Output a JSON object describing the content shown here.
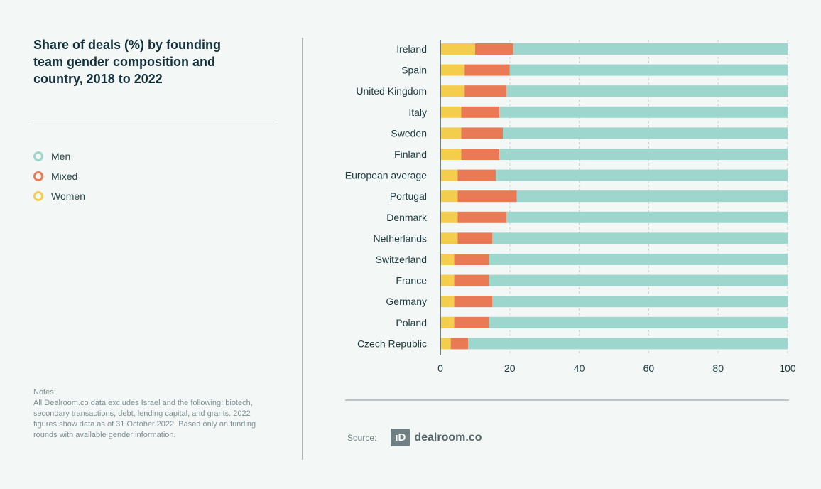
{
  "title": "Share of deals (%) by founding team gender composition and country, 2018 to 2022",
  "legend": [
    {
      "label": "Men",
      "color": "#9dd6cc"
    },
    {
      "label": "Mixed",
      "color": "#ea7a55"
    },
    {
      "label": "Women",
      "color": "#f5cd4d"
    }
  ],
  "notes": {
    "heading": "Notes:",
    "text": "All Dealroom.co data excludes Israel and the following: biotech, secondary transactions, debt, lending capital, and grants. 2022 figures show data as of 31 October 2022. Based only on funding rounds with available gender information."
  },
  "source": {
    "label": "Source:",
    "logo_mark": "ıD",
    "logo_text": "dealroom.co"
  },
  "chart_data": {
    "type": "bar",
    "orientation": "horizontal",
    "stacked": true,
    "categories": [
      "Ireland",
      "Spain",
      "United Kingdom",
      "Italy",
      "Sweden",
      "Finland",
      "European average",
      "Portugal",
      "Denmark",
      "Netherlands",
      "Switzerland",
      "France",
      "Germany",
      "Poland",
      "Czech Republic"
    ],
    "series": [
      {
        "name": "Women",
        "color": "#f5cd4d",
        "values": [
          10,
          7,
          7,
          6,
          6,
          6,
          5,
          5,
          5,
          5,
          4,
          4,
          4,
          4,
          3
        ]
      },
      {
        "name": "Mixed",
        "color": "#ea7a55",
        "values": [
          11,
          13,
          12,
          11,
          12,
          11,
          11,
          17,
          14,
          10,
          10,
          10,
          11,
          10,
          5
        ]
      },
      {
        "name": "Men",
        "color": "#9dd6cc",
        "values": [
          79,
          80,
          81,
          83,
          82,
          83,
          84,
          78,
          81,
          85,
          86,
          86,
          85,
          86,
          92
        ]
      }
    ],
    "xlim": [
      0,
      100
    ],
    "xticks": [
      0,
      20,
      40,
      60,
      80,
      100
    ],
    "grid": true,
    "legend_position": "left"
  }
}
